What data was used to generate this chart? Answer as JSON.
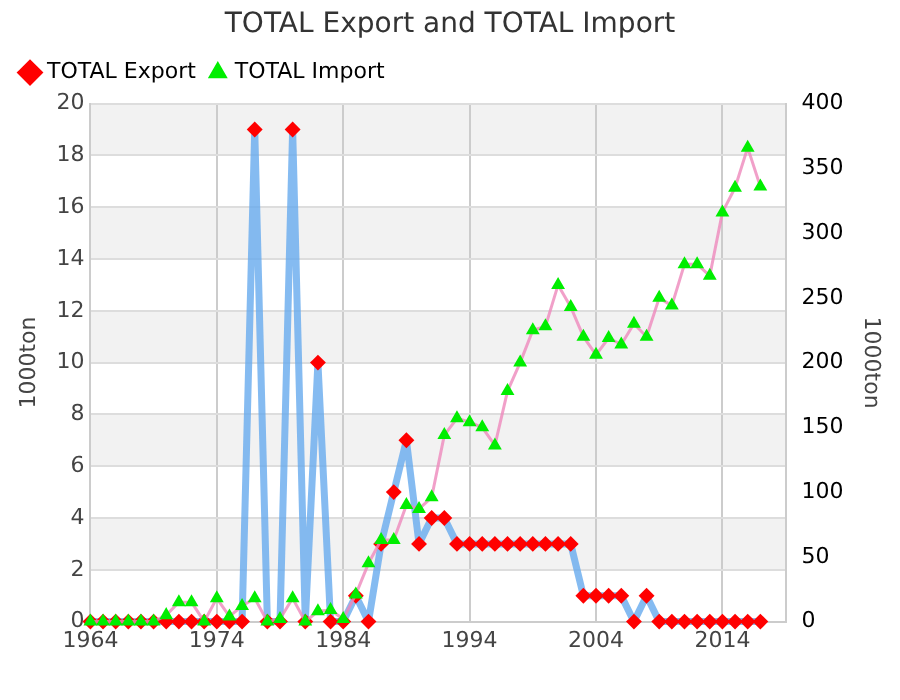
{
  "chart_data": {
    "type": "line",
    "title": "TOTAL Export and TOTAL Import",
    "ylabel": "1000ton",
    "y2label": "1000ton",
    "x": [
      1964,
      1965,
      1966,
      1967,
      1968,
      1969,
      1970,
      1971,
      1972,
      1973,
      1974,
      1975,
      1976,
      1977,
      1978,
      1979,
      1980,
      1981,
      1982,
      1983,
      1984,
      1985,
      1986,
      1987,
      1988,
      1989,
      1990,
      1991,
      1992,
      1993,
      1994,
      1995,
      1996,
      1997,
      1998,
      1999,
      2000,
      2001,
      2002,
      2003,
      2004,
      2005,
      2006,
      2007,
      2008,
      2009,
      2010,
      2011,
      2012,
      2013,
      2014,
      2015,
      2016,
      2017
    ],
    "xlim": [
      1964,
      2019
    ],
    "xticks": [
      1964,
      1974,
      1984,
      1994,
      2004,
      2014
    ],
    "ylim": [
      0,
      20
    ],
    "yticks": [
      0,
      2,
      4,
      6,
      8,
      10,
      12,
      14,
      16,
      18,
      20
    ],
    "y2lim": [
      0,
      400
    ],
    "y2ticks": [
      0,
      50,
      100,
      150,
      200,
      250,
      300,
      350,
      400
    ],
    "grid": true,
    "legend": "top left",
    "line_style": "solid",
    "series": [
      {
        "name": "TOTAL Export",
        "color": "#66aaee",
        "marker": "diamond",
        "colors": [
          "#ff0000",
          "#ff0000",
          "#ff0000",
          "#ff0000",
          "#ff0000",
          "#ff0000",
          "#ff0000",
          "#ff0000",
          "#ff0000",
          "#ff0000",
          "#ff0000",
          "#ff0000",
          "#ff0000",
          "#ff0000",
          "#ff0000",
          "#ff0000",
          "#ff0000",
          "#ff0000",
          "#ff0000",
          "#ff0000",
          "#ff0000",
          "#ff0000",
          "#ff0000",
          "#ff0000",
          "#ff0000",
          "#ff0000",
          "#ff0000",
          "#ff0000",
          "#ff0000",
          "#ff0000",
          "#ff0000",
          "#ff0000",
          "#ff0000",
          "#ff0000",
          "#ff0000",
          "#ff0000",
          "#ff0000",
          "#ff0000",
          "#ff0000",
          "#ff0000",
          "#ff0000",
          "#ff0000",
          "#ff0000",
          "#ff0000",
          "#ff0000",
          "#ff0000",
          "#ff0000",
          "#ff0000",
          "#ff0000",
          "#ff0000",
          "#ff0000",
          "#ff0000",
          "#ff0000",
          "#ff0000"
        ],
        "values": [
          0,
          0,
          0,
          0,
          0,
          0,
          0,
          0,
          0,
          0,
          0,
          0,
          0,
          19,
          0,
          0,
          19,
          0,
          10,
          0,
          0,
          1,
          0,
          3,
          5,
          7,
          3,
          4,
          4,
          3,
          3,
          3,
          3,
          3,
          3,
          3,
          3,
          3,
          3,
          1,
          1,
          1,
          1,
          0,
          1,
          0,
          0,
          0,
          0,
          0,
          0,
          0,
          0,
          0
        ]
      },
      {
        "name": "TOTAL Import",
        "color": "#ee88bb",
        "marker": "triangle",
        "axis": "y2",
        "colors": [
          "#00ee00",
          "#00ee00",
          "#00ee00",
          "#00ee00",
          "#00ee00",
          "#00ee00",
          "#00ee00",
          "#00ee00",
          "#00ee00",
          "#00ee00",
          "#00ee00",
          "#00ee00",
          "#00ee00",
          "#00ee00",
          "#00ee00",
          "#00ee00",
          "#00ee00",
          "#00ee00",
          "#00ee00",
          "#00ee00",
          "#00ee00",
          "#00ee00",
          "#00ee00",
          "#00ee00",
          "#00ee00",
          "#00ee00",
          "#00ee00",
          "#00ee00",
          "#00ee00",
          "#00ee00",
          "#00ee00",
          "#00ee00",
          "#00ee00",
          "#00ee00",
          "#00ee00",
          "#00ee00",
          "#00ee00",
          "#00ee00",
          "#00ee00",
          "#00ee00",
          "#00ee00",
          "#00ee00",
          "#00ee00",
          "#00ee00",
          "#00ee00",
          "#00ee00",
          "#00ee00",
          "#00ee00",
          "#00ee00",
          "#00ee00",
          "#00ee00",
          "#00ee00",
          "#00ee00",
          "#00ee00"
        ],
        "values": [
          0,
          0,
          0,
          0,
          0,
          0,
          5,
          15,
          15,
          0,
          18,
          4,
          12,
          18,
          0,
          2,
          18,
          0,
          8,
          9,
          2,
          21,
          45,
          63,
          63,
          90,
          87,
          96,
          144,
          157,
          154,
          150,
          136,
          178,
          200,
          225,
          228,
          260,
          243,
          220,
          206,
          219,
          214,
          230,
          220,
          250,
          244,
          276,
          276,
          267,
          316,
          335,
          366,
          336
        ]
      }
    ]
  }
}
